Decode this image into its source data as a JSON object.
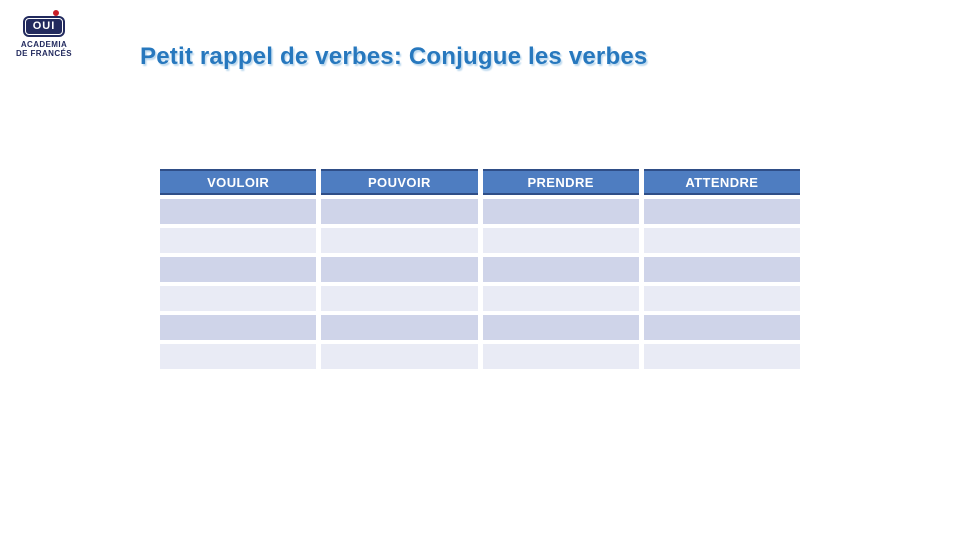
{
  "slide": {
    "title": "Petit rappel de verbes: Conjugue les verbes"
  },
  "logo": {
    "main_text": "OUI",
    "subtitle_line1": "ACADEMIA",
    "subtitle_line2": "DE FRANCÉS"
  },
  "table": {
    "columns": [
      "VOULOIR",
      "POUVOIR",
      "PRENDRE",
      "ATTENDRE"
    ],
    "rows": [
      [
        "",
        "",
        "",
        ""
      ],
      [
        "",
        "",
        "",
        ""
      ],
      [
        "",
        "",
        "",
        ""
      ],
      [
        "",
        "",
        "",
        ""
      ],
      [
        "",
        "",
        "",
        ""
      ],
      [
        "",
        "",
        "",
        ""
      ]
    ]
  },
  "colors": {
    "background": "#FFFFFF",
    "header_bg": "#4E7DC1",
    "header_border": "#2F4E87",
    "header_text": "#FFFFFF",
    "band_dark": "#CFD4E9",
    "band_light": "#E9EBF5",
    "title_text": "#2778BE",
    "logo_navy": "#222A5E",
    "logo_dot_red": "#C81E28"
  }
}
